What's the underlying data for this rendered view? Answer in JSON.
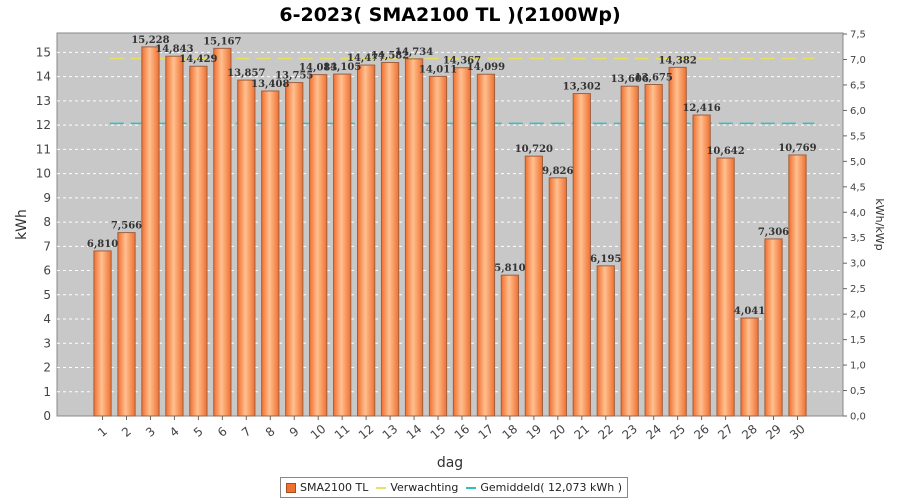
{
  "chart_data": {
    "type": "bar",
    "title": "6-2023( SMA2100 TL )(2100Wp)",
    "xlabel": "dag",
    "ylabel": "kWh",
    "ylabel_right": "kWh/kWp",
    "ylim": [
      0,
      15.8
    ],
    "yticks": [
      "0",
      "1",
      "2",
      "3",
      "4",
      "5",
      "6",
      "7",
      "8",
      "9",
      "10",
      "11",
      "12",
      "13",
      "14",
      "15"
    ],
    "ylim_right": [
      0,
      7.52
    ],
    "yticks_right": [
      "0,0",
      "0,5",
      "1,0",
      "1,5",
      "2,0",
      "2,5",
      "3,0",
      "3,5",
      "4,0",
      "4,5",
      "5,0",
      "5,5",
      "6,0",
      "6,5",
      "7,0",
      "7,5"
    ],
    "categories": [
      "1",
      "2",
      "3",
      "4",
      "5",
      "6",
      "7",
      "8",
      "9",
      "10",
      "11",
      "12",
      "13",
      "14",
      "15",
      "16",
      "17",
      "18",
      "19",
      "20",
      "21",
      "22",
      "23",
      "24",
      "25",
      "26",
      "27",
      "28",
      "29",
      "30"
    ],
    "series": [
      {
        "name": "SMA2100 TL",
        "values": [
          6.81,
          7.566,
          15.228,
          14.843,
          14.429,
          15.167,
          13.857,
          13.408,
          13.755,
          14.083,
          14.105,
          14.477,
          14.582,
          14.734,
          14.011,
          14.367,
          14.099,
          5.81,
          10.72,
          9.826,
          13.302,
          6.195,
          13.606,
          13.675,
          14.382,
          12.416,
          10.642,
          4.041,
          7.306,
          10.769
        ]
      }
    ],
    "data_labels": [
      "6,810",
      "7,566",
      "15,228",
      "14,843",
      "14,429",
      "15,167",
      "13,857",
      "13,408",
      "13,755",
      "14,083",
      "14,105",
      "14,477",
      "14,582",
      "14,734",
      "14,011",
      "14,367",
      "14,099",
      "5,810",
      "10,720",
      "9,826",
      "13,302",
      "6,195",
      "13,606",
      "13,675",
      "14,382",
      "12,416",
      "10,642",
      "4,041",
      "7,306",
      "10,769"
    ],
    "reference_lines": [
      {
        "name": "Verwachting",
        "value": 14.75,
        "color": "#e8e060"
      },
      {
        "name": "Gemiddeld( 12,073 kWh )",
        "value": 12.073,
        "color": "#30c0c0"
      }
    ],
    "legend": {
      "position": "bottom-center",
      "entries": [
        "SMA2100 TL",
        "Verwachting",
        "Gemiddeld( 12,073 kWh )"
      ]
    },
    "grid": true,
    "colors": {
      "bar": "#f07030",
      "bar_light": "#ffc090",
      "bar_border": "#a06040",
      "plot_bg": "#c8c8c8",
      "grid": "#ffffff"
    }
  }
}
